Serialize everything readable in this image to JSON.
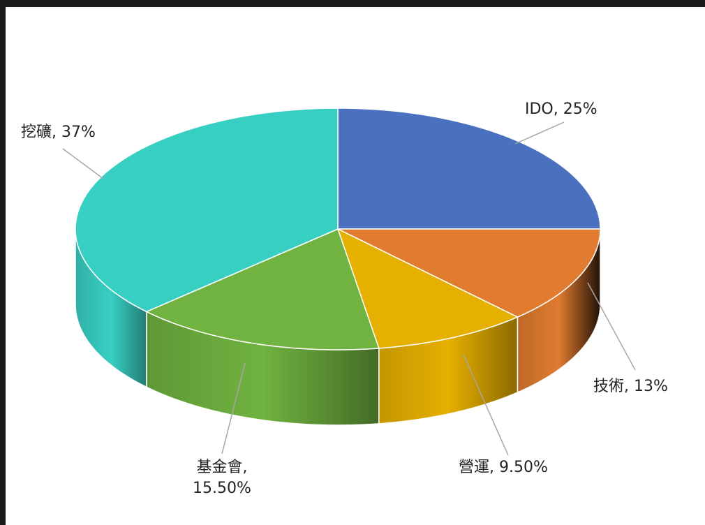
{
  "chart_data": {
    "type": "pie3d",
    "values": [
      25,
      13,
      9.5,
      15.5,
      37
    ],
    "value_labels": [
      "IDO, 25%",
      "技術, 13%",
      "營運, 9.50%",
      "基金會, 15.50%",
      "挖礦, 37%"
    ],
    "colors": [
      "#4a70c0",
      "#e07b30",
      "#e6b000",
      "#70b340",
      "#38cfc3"
    ]
  }
}
